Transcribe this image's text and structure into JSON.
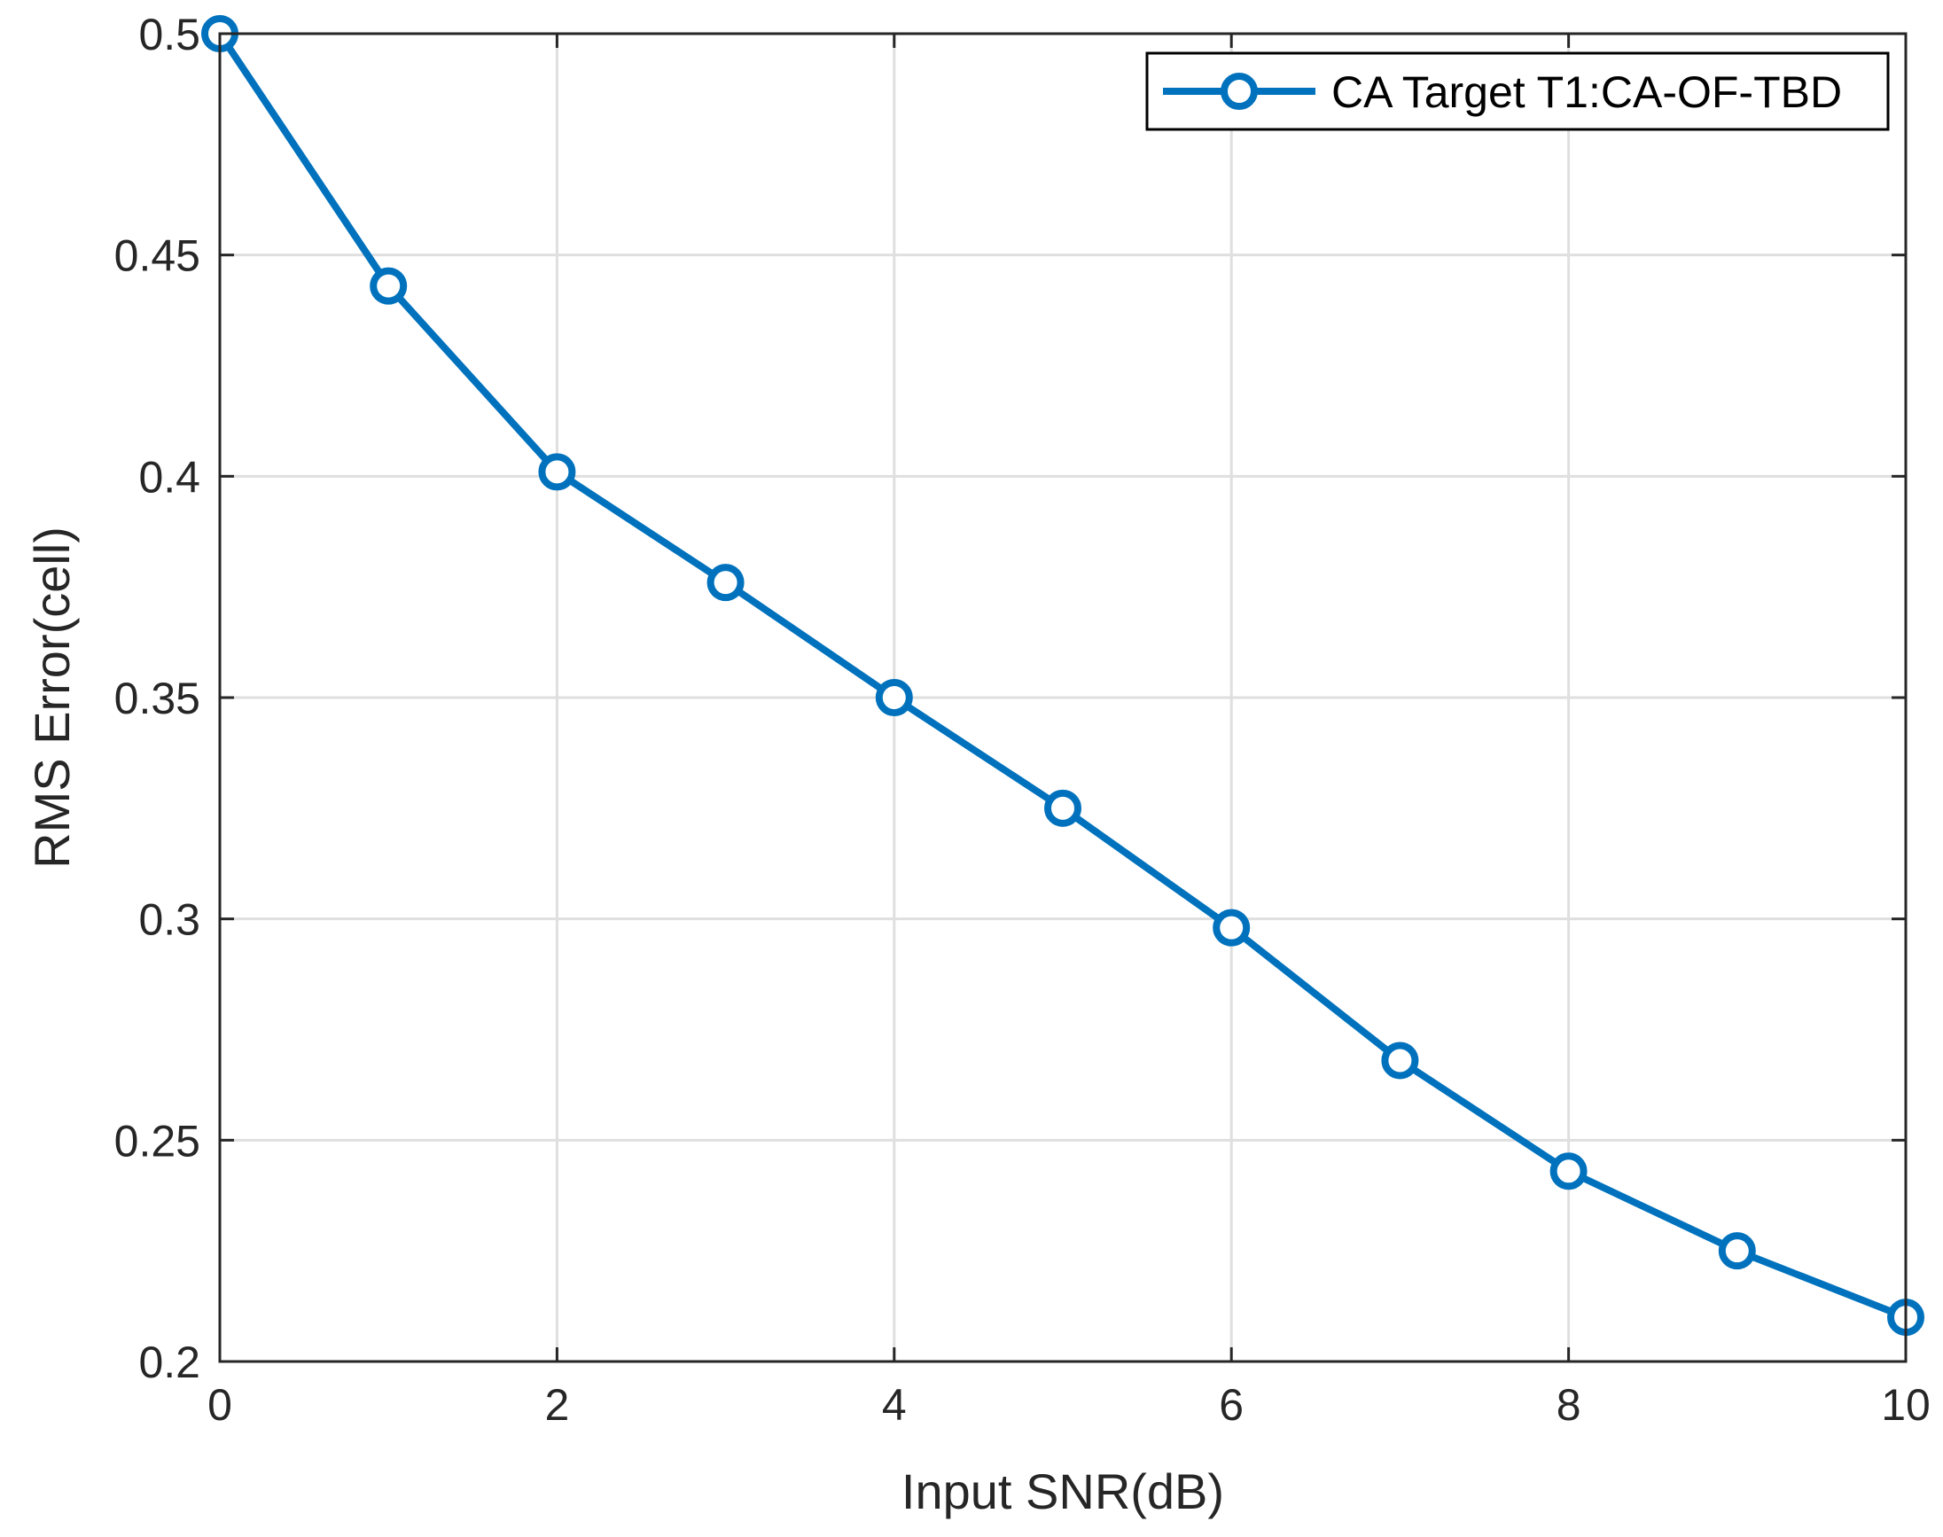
{
  "chart_data": {
    "type": "line",
    "title": "",
    "xlabel": "Input SNR(dB)",
    "ylabel": "RMS Error(cell)",
    "xlim": [
      0,
      10
    ],
    "ylim": [
      0.2,
      0.5
    ],
    "xticks": [
      0,
      2,
      4,
      6,
      8,
      10
    ],
    "xtick_labels": [
      "0",
      "2",
      "4",
      "6",
      "8",
      "10"
    ],
    "yticks": [
      0.2,
      0.25,
      0.3,
      0.35,
      0.4,
      0.45,
      0.5
    ],
    "ytick_labels": [
      "0.2",
      "0.25",
      "0.3",
      "0.35",
      "0.4",
      "0.45",
      "0.5"
    ],
    "grid": true,
    "legend_position": "top-right",
    "series": [
      {
        "name": "CA Target T1:CA-OF-TBD",
        "color": "#0072BD",
        "marker": "circle",
        "x": [
          0,
          1,
          2,
          3,
          4,
          5,
          6,
          7,
          8,
          9,
          10
        ],
        "y": [
          0.5,
          0.443,
          0.401,
          0.376,
          0.35,
          0.325,
          0.298,
          0.268,
          0.243,
          0.225,
          0.21
        ]
      }
    ]
  }
}
